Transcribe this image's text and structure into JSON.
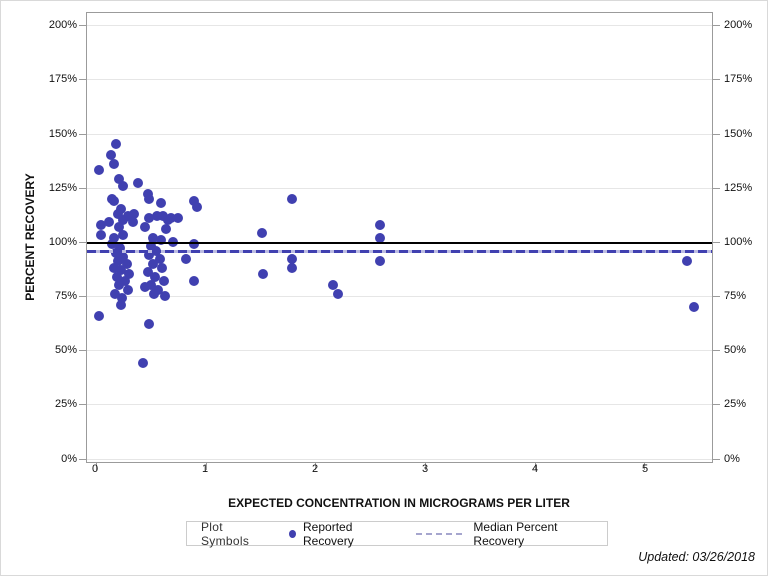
{
  "chart_data": {
    "type": "scatter",
    "title": "",
    "xlabel": "EXPECTED CONCENTRATION IN MICROGRAMS PER LITER",
    "ylabel": "PERCENT RECOVERY",
    "xlim": [
      -0.082,
      5.618
    ],
    "ylim": [
      -1.6,
      205.7
    ],
    "x_ticks": [
      0,
      1,
      2,
      3,
      4,
      5
    ],
    "y_ticks": [
      {
        "value": 0,
        "label": "0%"
      },
      {
        "value": 25,
        "label": "25%"
      },
      {
        "value": 50,
        "label": "50%"
      },
      {
        "value": 75,
        "label": "75%"
      },
      {
        "value": 100,
        "label": "100%"
      },
      {
        "value": 125,
        "label": "125%"
      },
      {
        "value": 150,
        "label": "150%"
      },
      {
        "value": 175,
        "label": "175%"
      },
      {
        "value": 200,
        "label": "200%"
      }
    ],
    "grid": true,
    "legend_position": "bottom",
    "marker_color": "#4040b0",
    "series": [
      {
        "name": "Reported Recovery",
        "points": [
          [
            0.18,
            145
          ],
          [
            0.14,
            140
          ],
          [
            0.16,
            136
          ],
          [
            0.03,
            133
          ],
          [
            0.21,
            129
          ],
          [
            0.38,
            127
          ],
          [
            0.25,
            126
          ],
          [
            0.47,
            122
          ],
          [
            0.16,
            119
          ],
          [
            0.15,
            120
          ],
          [
            0.48,
            120
          ],
          [
            0.59,
            118
          ],
          [
            0.23,
            115
          ],
          [
            0.29,
            112
          ],
          [
            0.61,
            112
          ],
          [
            0.25,
            110
          ],
          [
            0.66,
            110
          ],
          [
            0.89,
            119
          ],
          [
            0.92,
            116
          ],
          [
            0.75,
            111
          ],
          [
            0.2,
            113
          ],
          [
            0.35,
            113
          ],
          [
            0.48,
            111
          ],
          [
            0.56,
            112
          ],
          [
            0.68,
            111
          ],
          [
            0.05,
            108
          ],
          [
            0.12,
            109
          ],
          [
            0.21,
            107
          ],
          [
            0.34,
            109
          ],
          [
            0.45,
            107
          ],
          [
            0.64,
            106
          ],
          [
            0.05,
            103
          ],
          [
            0.16,
            102
          ],
          [
            0.25,
            103
          ],
          [
            0.52,
            102
          ],
          [
            0.59,
            101
          ],
          [
            0.7,
            100
          ],
          [
            0.15,
            99
          ],
          [
            0.22,
            97
          ],
          [
            0.18,
            95
          ],
          [
            0.25,
            93
          ],
          [
            0.2,
            91
          ],
          [
            0.28,
            90
          ],
          [
            0.16,
            88
          ],
          [
            0.23,
            87
          ],
          [
            0.3,
            85
          ],
          [
            0.19,
            84
          ],
          [
            0.26,
            82
          ],
          [
            0.21,
            80
          ],
          [
            0.29,
            78
          ],
          [
            0.17,
            76
          ],
          [
            0.24,
            74
          ],
          [
            0.23,
            71
          ],
          [
            0.5,
            98
          ],
          [
            0.55,
            96
          ],
          [
            0.48,
            94
          ],
          [
            0.58,
            92
          ],
          [
            0.52,
            90
          ],
          [
            0.6,
            88
          ],
          [
            0.47,
            86
          ],
          [
            0.54,
            84
          ],
          [
            0.62,
            82
          ],
          [
            0.5,
            80
          ],
          [
            0.57,
            78
          ],
          [
            0.53,
            76
          ],
          [
            0.63,
            75
          ],
          [
            0.45,
            79
          ],
          [
            0.89,
            99
          ],
          [
            0.89,
            82
          ],
          [
            0.82,
            92
          ],
          [
            0.03,
            66
          ],
          [
            0.48,
            62
          ],
          [
            0.43,
            44
          ],
          [
            1.51,
            104
          ],
          [
            1.52,
            85
          ],
          [
            1.79,
            120
          ],
          [
            1.79,
            92
          ],
          [
            1.79,
            88
          ],
          [
            2.16,
            80
          ],
          [
            2.21,
            76
          ],
          [
            2.59,
            108
          ],
          [
            2.59,
            102
          ],
          [
            2.59,
            91
          ],
          [
            5.39,
            91
          ],
          [
            5.45,
            70
          ]
        ]
      }
    ],
    "reference_lines": [
      {
        "name": "100 percent reference",
        "y": 100,
        "style": "solid",
        "color": "#000000"
      },
      {
        "name": "Median Percent Recovery",
        "y": 96.3,
        "style": "dashed",
        "color": "#4040b0"
      }
    ]
  },
  "legend": {
    "title": "Plot Symbols",
    "marker_label": "Reported Recovery",
    "line_label": "Median Percent Recovery"
  },
  "footer": {
    "updated_note": "Updated: 03/26/2018"
  },
  "colors": {
    "marker": "#4040b0",
    "reference_solid": "#000000",
    "median_dash": "#4040b0",
    "gridline": "#e6e6e6",
    "plot_border": "#9b9b9b"
  }
}
